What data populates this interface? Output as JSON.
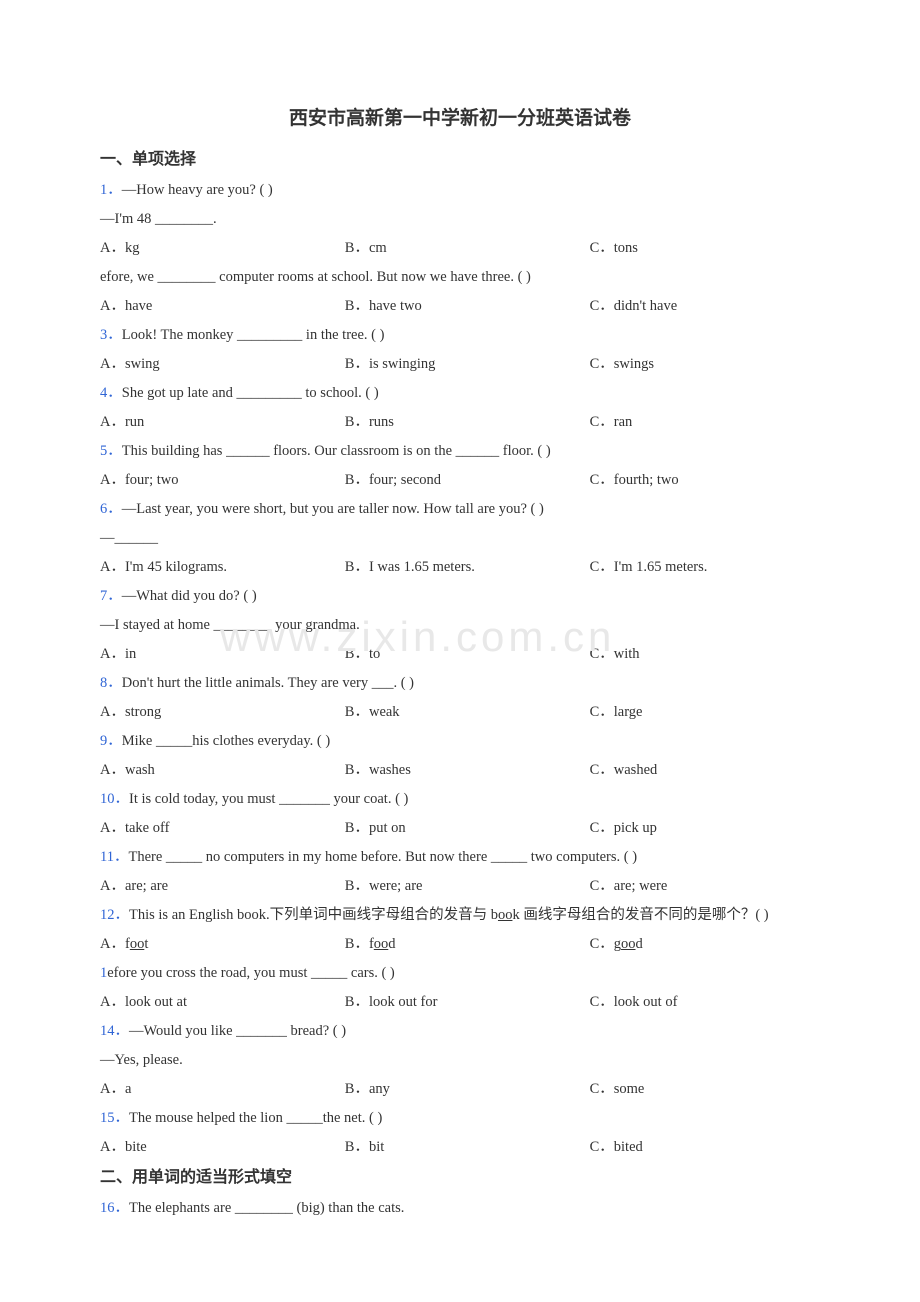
{
  "title": "西安市高新第一中学新初一分班英语试卷",
  "sections": {
    "s1": "一、单项选择",
    "s2": "二、用单词的适当形式填空"
  },
  "watermark": "www.zixin.com.cn",
  "q": {
    "1": {
      "num": "1．",
      "text": "—How heavy are you? (    )",
      "line2": "—I'm 48 ________.",
      "a": "A．kg",
      "b": "B．cm",
      "c": "C．tons"
    },
    "2": {
      "num": "",
      "text": "efore, we ________ computer rooms at school. But now we have three. (   )",
      "a": "A．have",
      "b": "B．have two",
      "c": "C．didn't have"
    },
    "3": {
      "num": "3．",
      "text": "Look! The monkey _________ in the tree. (    )",
      "a": "A．swing",
      "b": "B．is swinging",
      "c": "C．swings"
    },
    "4": {
      "num": "4．",
      "text": "She got up late and _________ to school. (    )",
      "a": "A．run",
      "b": "B．runs",
      "c": "C．ran"
    },
    "5": {
      "num": "5．",
      "text": "This building has ______ floors. Our classroom is on the ______ floor. (    )",
      "a": "A．four; two",
      "b": "B．four; second",
      "c": "C．fourth; two"
    },
    "6": {
      "num": "6．",
      "text": "—Last year, you were short, but you are taller now. How tall are you? (    )",
      "line2": "—______",
      "a": "A．I'm 45 kilograms.",
      "b": "B．I was 1.65 meters.",
      "c": "C．I'm 1.65 meters."
    },
    "7": {
      "num": "7．",
      "text": "—What did you do? (     )",
      "line2": "—I stayed at home ________ your grandma.",
      "a": "A．in",
      "b": "B．to",
      "c": "C．with"
    },
    "8": {
      "num": "8．",
      "text": "Don't hurt the little animals. They are very ___. (    )",
      "a": "A．strong",
      "b": "B．weak",
      "c": "C．large"
    },
    "9": {
      "num": "9．",
      "text": "Mike _____his clothes everyday. (   )",
      "a": "A．wash",
      "b": "B．washes",
      "c": "C．washed"
    },
    "10": {
      "num": "10．",
      "text": "It is cold today, you must _______ your coat. (    )",
      "a": "A．take off",
      "b": "B．put on",
      "c": "C．pick up"
    },
    "11": {
      "num": "11．",
      "text": "There _____ no computers in my home before. But now there _____ two computers. (    )",
      "a": "A．are; are",
      "b": "B．were; are",
      "c": "C．are; were"
    },
    "12": {
      "num": "12．",
      "text_pre": "This is an English book.下列单词中画线字母组合的发音与 b",
      "text_u": "oo",
      "text_post": "k 画线字母组合的发音不同的是哪个？(   )",
      "a_pre": "A．f",
      "a_u": "oo",
      "a_post": "t",
      "b_pre": "B．f",
      "b_u": "oo",
      "b_post": "d",
      "c_pre": "C．g",
      "c_u": "oo",
      "c_post": "d"
    },
    "13": {
      "num": "1",
      "text": "efore you cross the road, you must _____ cars. (   )",
      "a": "A．look out at",
      "b": "B．look out for",
      "c": "C．look out of"
    },
    "14": {
      "num": "14．",
      "text": "—Would you like _______ bread? (           )",
      "line2": "—Yes, please.",
      "a": "A．a",
      "b": "B．any",
      "c": "C．some"
    },
    "15": {
      "num": "15．",
      "text": "The mouse helped the lion _____the net. (   )",
      "a": "A．bite",
      "b": "B．bit",
      "c": "C．bited"
    },
    "16": {
      "num": "16．",
      "text": "The elephants are ________ (big) than the cats."
    }
  }
}
